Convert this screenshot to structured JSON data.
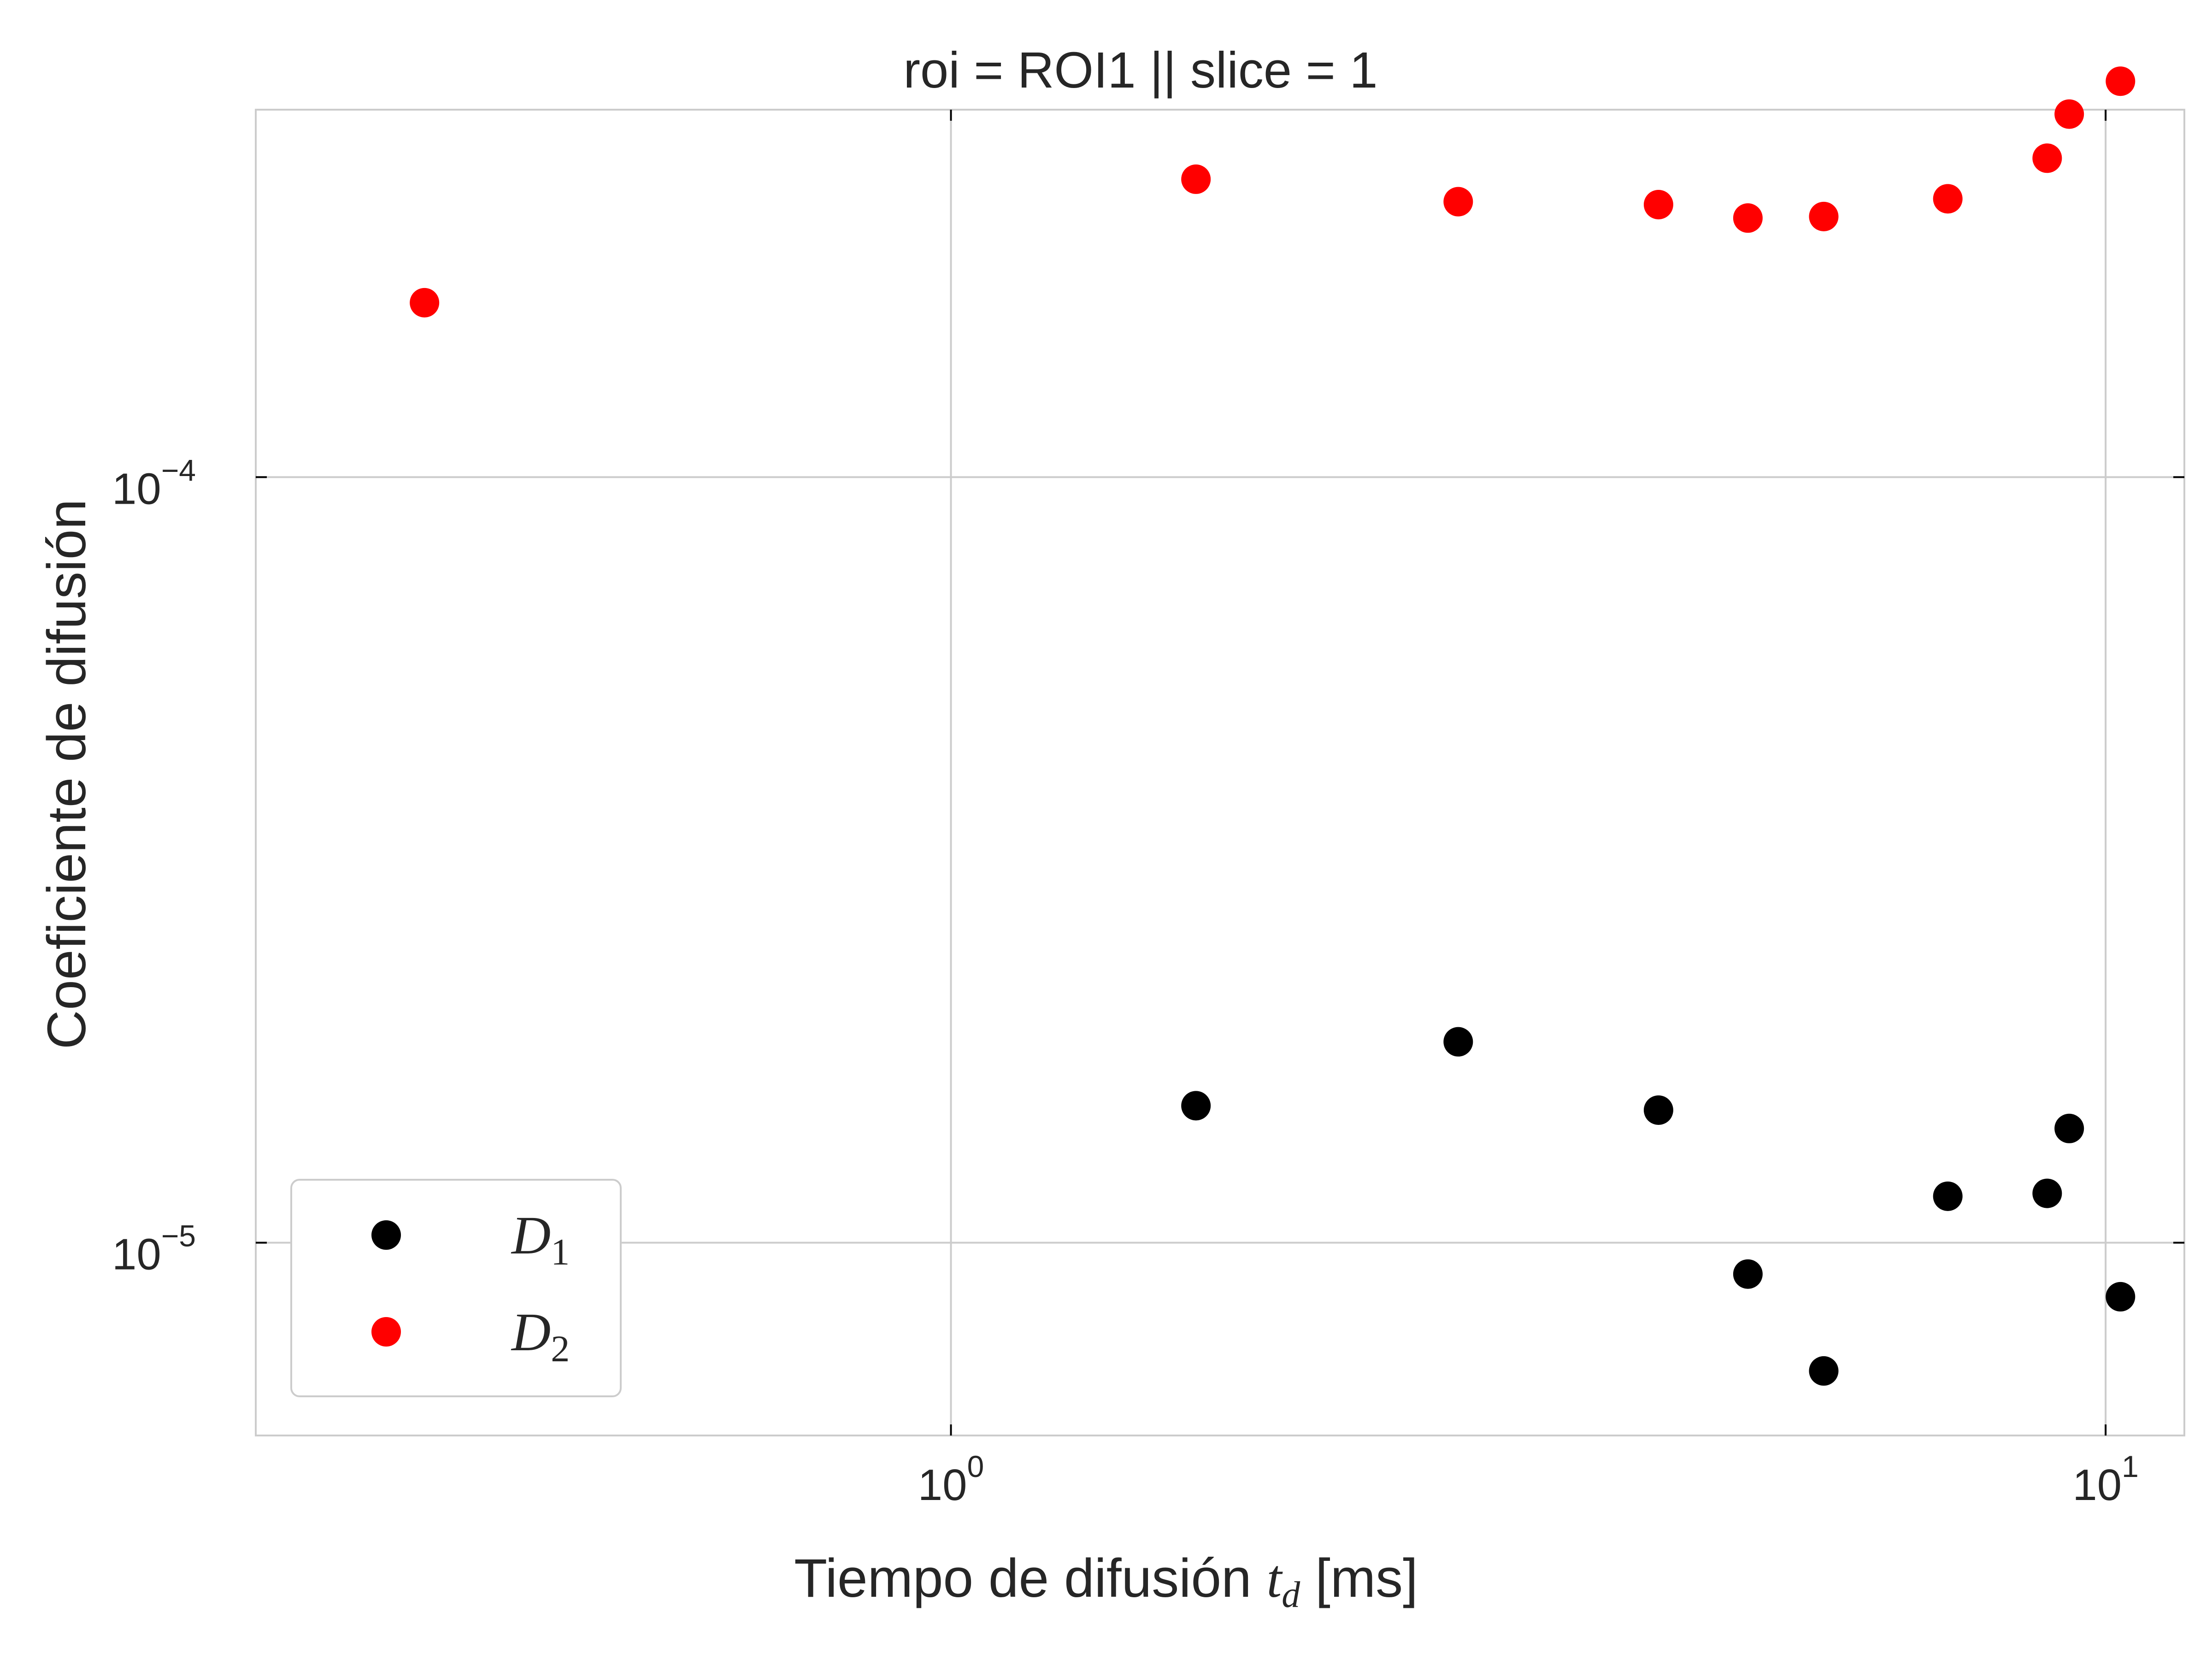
{
  "chart_data": {
    "type": "scatter",
    "title": "roi = ROI1 || slice = 1",
    "xlabel": "Tiempo de difusión t_d [ms]",
    "xlabel_parts": {
      "main": "Tiempo de difusión ",
      "var": "t",
      "sub": "d",
      "unit": " [ms]"
    },
    "ylabel": "Coeficiente de difusión",
    "x_scale": "log",
    "y_scale": "log",
    "xlim": [
      0.25,
      11.7
    ],
    "ylim": [
      5.6e-06,
      0.000302
    ],
    "grid": true,
    "legend_position": "lower-left",
    "x_ticks": [
      {
        "value": 1,
        "base": "10",
        "exp": "0"
      },
      {
        "value": 10,
        "base": "10",
        "exp": "1"
      }
    ],
    "y_ticks": [
      {
        "value": 1e-05,
        "base": "10",
        "exp": "−5"
      },
      {
        "value": 0.0001,
        "base": "10",
        "exp": "−4"
      }
    ],
    "series": [
      {
        "name": "D1",
        "name_parts": {
          "var": "D",
          "sub": "1"
        },
        "color": "#000000",
        "points": [
          [
            1.63,
            1.51e-05
          ],
          [
            2.75,
            1.83e-05
          ],
          [
            4.1,
            1.49e-05
          ],
          [
            4.9,
            9.1e-06
          ],
          [
            5.7,
            6.8e-06
          ],
          [
            7.3,
            1.15e-05
          ],
          [
            8.9,
            1.16e-05
          ],
          [
            9.3,
            1.41e-05
          ],
          [
            10.3,
            8.5e-06
          ]
        ]
      },
      {
        "name": "D2",
        "name_parts": {
          "var": "D",
          "sub": "2"
        },
        "color": "#ff0000",
        "points": [
          [
            0.35,
            0.000169
          ],
          [
            1.63,
            0.000245
          ],
          [
            2.75,
            0.000229
          ],
          [
            4.1,
            0.000227
          ],
          [
            4.9,
            0.000218
          ],
          [
            5.7,
            0.000219
          ],
          [
            7.3,
            0.000231
          ],
          [
            8.9,
            0.000261
          ],
          [
            9.3,
            0.000298
          ],
          [
            10.3,
            0.000329
          ]
        ]
      }
    ]
  }
}
